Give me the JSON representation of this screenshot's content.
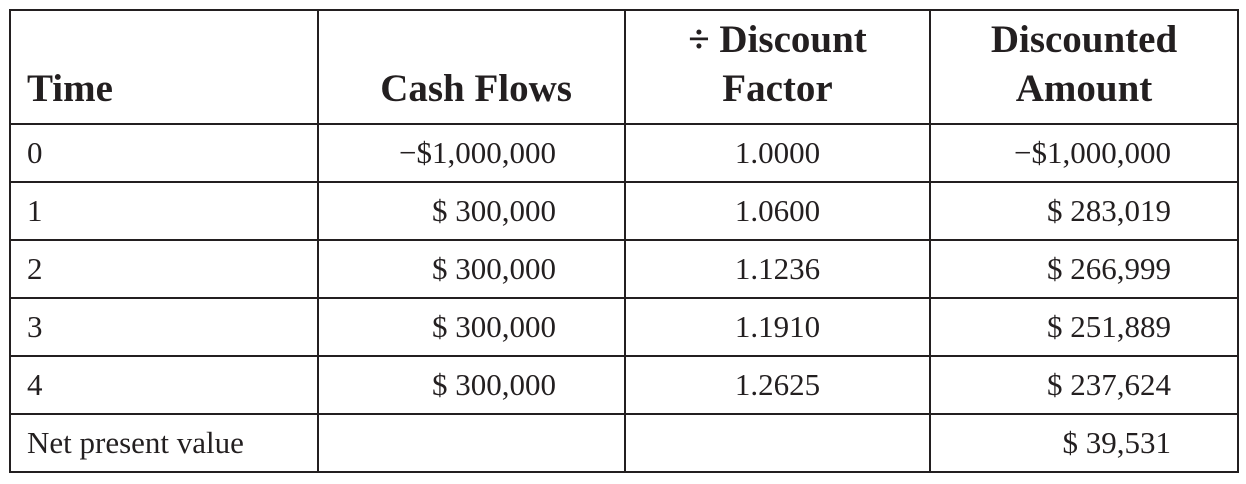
{
  "table": {
    "headers": {
      "time": "Time",
      "cash_flows": "Cash Flows",
      "discount_factor_line1": "÷ Discount",
      "discount_factor_line2": "Factor",
      "discounted_amount_line1": "Discounted",
      "discounted_amount_line2": "Amount"
    },
    "rows": [
      {
        "time": "0",
        "cash_flow": "−$1,000,000",
        "discount_factor": "1.0000",
        "discounted_amount": "−$1,000,000"
      },
      {
        "time": "1",
        "cash_flow": "$ 300,000",
        "discount_factor": "1.0600",
        "discounted_amount": "$ 283,019"
      },
      {
        "time": "2",
        "cash_flow": "$ 300,000",
        "discount_factor": "1.1236",
        "discounted_amount": "$ 266,999"
      },
      {
        "time": "3",
        "cash_flow": "$ 300,000",
        "discount_factor": "1.1910",
        "discounted_amount": "$ 251,889"
      },
      {
        "time": "4",
        "cash_flow": "$ 300,000",
        "discount_factor": "1.2625",
        "discounted_amount": "$ 237,624"
      }
    ],
    "total": {
      "label": "Net present value",
      "cash_flow": "",
      "discount_factor": "",
      "discounted_amount": "$ 39,531"
    }
  }
}
